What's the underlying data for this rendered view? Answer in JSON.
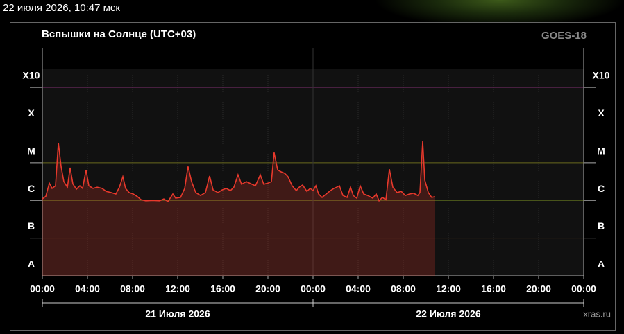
{
  "header": {
    "timestamp": "22 июля 2026, 10:47 мск"
  },
  "chart_data": {
    "type": "area",
    "title": "Вспышки на Солнце (UTC+03)",
    "source": "GOES-18",
    "credit": "xras.ru",
    "xlim": [
      0,
      48
    ],
    "xticks": [
      {
        "value": 0,
        "label": "00:00"
      },
      {
        "value": 4,
        "label": "04:00"
      },
      {
        "value": 8,
        "label": "08:00"
      },
      {
        "value": 12,
        "label": "12:00"
      },
      {
        "value": 16,
        "label": "16:00"
      },
      {
        "value": 20,
        "label": "20:00"
      },
      {
        "value": 24,
        "label": "00:00"
      },
      {
        "value": 28,
        "label": "04:00"
      },
      {
        "value": 32,
        "label": "08:00"
      },
      {
        "value": 36,
        "label": "12:00"
      },
      {
        "value": 40,
        "label": "16:00"
      },
      {
        "value": 44,
        "label": "20:00"
      },
      {
        "value": 48,
        "label": "00:00"
      }
    ],
    "x_groups": [
      {
        "label": "21 Июля 2026",
        "start": 0,
        "end": 24
      },
      {
        "label": "22 Июля 2026",
        "start": 24,
        "end": 48
      }
    ],
    "ylim": [
      -8,
      -2.5
    ],
    "yticks": [
      {
        "value": -7.5,
        "label": "A"
      },
      {
        "value": -6.5,
        "label": "B"
      },
      {
        "value": -5.5,
        "label": "C"
      },
      {
        "value": -4.5,
        "label": "M"
      },
      {
        "value": -3.5,
        "label": "X"
      },
      {
        "value": -2.5,
        "label": "X10"
      }
    ],
    "class_lines": [
      {
        "value": -7,
        "color": "#4a3422"
      },
      {
        "value": -6,
        "color": "#5a6a1e"
      },
      {
        "value": -5,
        "color": "#6a6a1e"
      },
      {
        "value": -4,
        "color": "#6e2222"
      },
      {
        "value": -3,
        "color": "#6a2a5e"
      }
    ],
    "series": [
      {
        "color": "#e8392c",
        "x": [
          0,
          0.31,
          0.62,
          0.86,
          1.17,
          1.42,
          1.66,
          1.91,
          2.22,
          2.46,
          2.71,
          3.02,
          3.32,
          3.57,
          3.88,
          4.12,
          4.49,
          4.86,
          5.29,
          5.66,
          6.09,
          6.52,
          6.83,
          7.14,
          7.38,
          7.69,
          8.06,
          8.43,
          8.74,
          9.17,
          9.78,
          10.4,
          10.77,
          11.14,
          11.57,
          11.82,
          12.25,
          12.62,
          12.92,
          13.23,
          13.6,
          14.03,
          14.46,
          14.83,
          15.14,
          15.57,
          15.94,
          16.31,
          16.68,
          16.98,
          17.35,
          17.66,
          18.09,
          18.52,
          18.89,
          19.32,
          19.63,
          20,
          20.31,
          20.55,
          20.86,
          21.17,
          21.48,
          21.78,
          22.15,
          22.52,
          22.77,
          23.08,
          23.45,
          23.75,
          24,
          24.25,
          24.49,
          24.8,
          25.17,
          25.54,
          25.85,
          26.09,
          26.34,
          26.65,
          27.02,
          27.32,
          27.57,
          27.88,
          28.18,
          28.49,
          28.86,
          29.29,
          29.6,
          29.85,
          30.15,
          30.46,
          30.77,
          31.08,
          31.45,
          31.82,
          32.18,
          32.55,
          32.92,
          33.29,
          33.48,
          33.72,
          33.91,
          34.22,
          34.52,
          34.83
        ],
        "values": [
          -5.96,
          -5.89,
          -5.54,
          -5.68,
          -5.61,
          -4.47,
          -5.1,
          -5.5,
          -5.65,
          -5.13,
          -5.56,
          -5.7,
          -5.61,
          -5.68,
          -5.19,
          -5.61,
          -5.68,
          -5.65,
          -5.68,
          -5.76,
          -5.79,
          -5.83,
          -5.65,
          -5.37,
          -5.68,
          -5.79,
          -5.83,
          -5.9,
          -5.98,
          -6.01,
          -6,
          -6.01,
          -5.96,
          -6.03,
          -5.83,
          -5.94,
          -5.92,
          -5.68,
          -5.1,
          -5.5,
          -5.79,
          -5.87,
          -5.79,
          -5.35,
          -5.72,
          -5.79,
          -5.72,
          -5.68,
          -5.74,
          -5.65,
          -5.32,
          -5.57,
          -5.5,
          -5.56,
          -5.61,
          -5.32,
          -5.57,
          -5.54,
          -5.5,
          -4.73,
          -5.19,
          -5.24,
          -5.28,
          -5.37,
          -5.61,
          -5.74,
          -5.65,
          -5.59,
          -5.76,
          -5.68,
          -5.74,
          -5.61,
          -5.83,
          -5.92,
          -5.83,
          -5.74,
          -5.68,
          -5.65,
          -5.61,
          -5.87,
          -5.92,
          -5.65,
          -5.87,
          -5.94,
          -5.61,
          -5.83,
          -5.87,
          -5.94,
          -5.83,
          -6.01,
          -5.92,
          -5.98,
          -5.17,
          -5.65,
          -5.79,
          -5.76,
          -5.87,
          -5.83,
          -5.81,
          -5.87,
          -5.79,
          -4.43,
          -5.46,
          -5.79,
          -5.92,
          -5.9
        ]
      }
    ]
  }
}
